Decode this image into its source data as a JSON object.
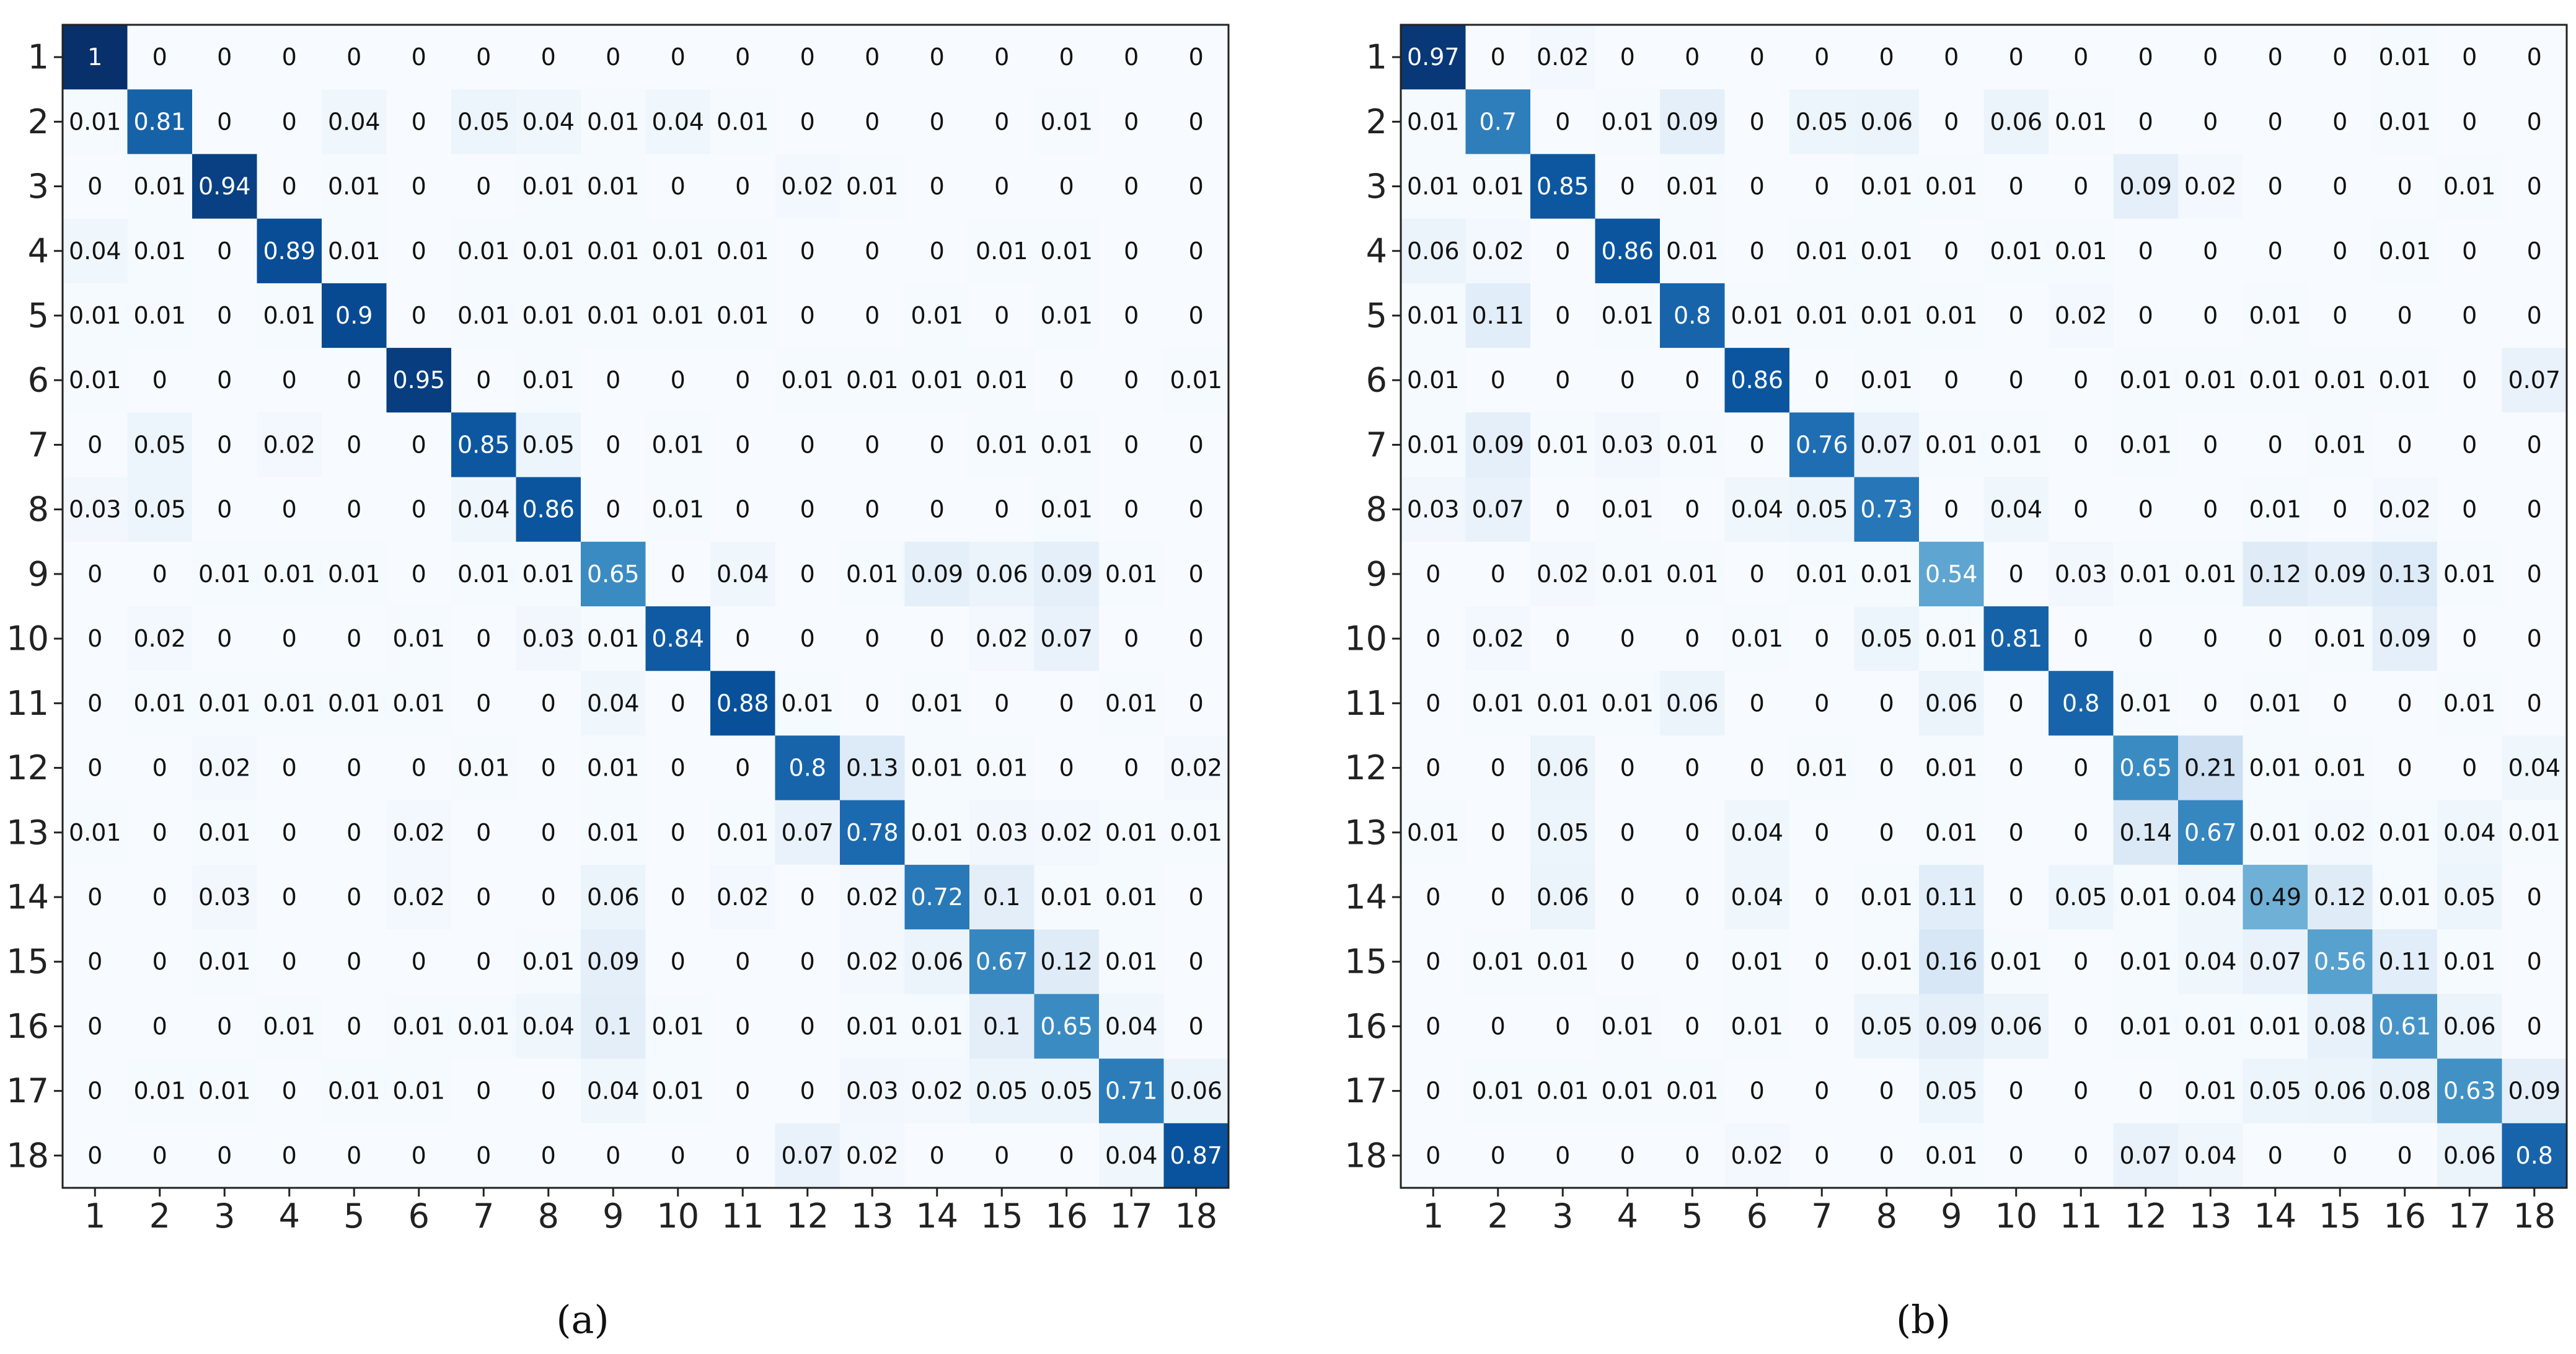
{
  "figure": {
    "chart_data": [
      {
        "type": "heatmap",
        "caption": "(a)",
        "x_categories": [
          "1",
          "2",
          "3",
          "4",
          "5",
          "6",
          "7",
          "8",
          "9",
          "10",
          "11",
          "12",
          "13",
          "14",
          "15",
          "16",
          "17",
          "18"
        ],
        "y_categories": [
          "1",
          "2",
          "3",
          "4",
          "5",
          "6",
          "7",
          "8",
          "9",
          "10",
          "11",
          "12",
          "13",
          "14",
          "15",
          "16",
          "17",
          "18"
        ],
        "colormap": "Blues",
        "value_range": [
          0,
          1
        ],
        "values": [
          [
            "1",
            "0",
            "0",
            "0",
            "0",
            "0",
            "0",
            "0",
            "0",
            "0",
            "0",
            "0",
            "0",
            "0",
            "0",
            "0",
            "0",
            "0"
          ],
          [
            "0.01",
            "0.81",
            "0",
            "0",
            "0.04",
            "0",
            "0.05",
            "0.04",
            "0.01",
            "0.04",
            "0.01",
            "0",
            "0",
            "0",
            "0",
            "0.01",
            "0",
            "0"
          ],
          [
            "0",
            "0.01",
            "0.94",
            "0",
            "0.01",
            "0",
            "0",
            "0.01",
            "0.01",
            "0",
            "0",
            "0.02",
            "0.01",
            "0",
            "0",
            "0",
            "0",
            "0"
          ],
          [
            "0.04",
            "0.01",
            "0",
            "0.89",
            "0.01",
            "0",
            "0.01",
            "0.01",
            "0.01",
            "0.01",
            "0.01",
            "0",
            "0",
            "0",
            "0.01",
            "0.01",
            "0",
            "0"
          ],
          [
            "0.01",
            "0.01",
            "0",
            "0.01",
            "0.9",
            "0",
            "0.01",
            "0.01",
            "0.01",
            "0.01",
            "0.01",
            "0",
            "0",
            "0.01",
            "0",
            "0.01",
            "0",
            "0"
          ],
          [
            "0.01",
            "0",
            "0",
            "0",
            "0",
            "0.95",
            "0",
            "0.01",
            "0",
            "0",
            "0",
            "0.01",
            "0.01",
            "0.01",
            "0.01",
            "0",
            "0",
            "0.01"
          ],
          [
            "0",
            "0.05",
            "0",
            "0.02",
            "0",
            "0",
            "0.85",
            "0.05",
            "0",
            "0.01",
            "0",
            "0",
            "0",
            "0",
            "0.01",
            "0.01",
            "0",
            "0"
          ],
          [
            "0.03",
            "0.05",
            "0",
            "0",
            "0",
            "0",
            "0.04",
            "0.86",
            "0",
            "0.01",
            "0",
            "0",
            "0",
            "0",
            "0",
            "0.01",
            "0",
            "0"
          ],
          [
            "0",
            "0",
            "0.01",
            "0.01",
            "0.01",
            "0",
            "0.01",
            "0.01",
            "0.65",
            "0",
            "0.04",
            "0",
            "0.01",
            "0.09",
            "0.06",
            "0.09",
            "0.01",
            "0"
          ],
          [
            "0",
            "0.02",
            "0",
            "0",
            "0",
            "0.01",
            "0",
            "0.03",
            "0.01",
            "0.84",
            "0",
            "0",
            "0",
            "0",
            "0.02",
            "0.07",
            "0",
            "0"
          ],
          [
            "0",
            "0.01",
            "0.01",
            "0.01",
            "0.01",
            "0.01",
            "0",
            "0",
            "0.04",
            "0",
            "0.88",
            "0.01",
            "0",
            "0.01",
            "0",
            "0",
            "0.01",
            "0"
          ],
          [
            "0",
            "0",
            "0.02",
            "0",
            "0",
            "0",
            "0.01",
            "0",
            "0.01",
            "0",
            "0",
            "0.8",
            "0.13",
            "0.01",
            "0.01",
            "0",
            "0",
            "0.02"
          ],
          [
            "0.01",
            "0",
            "0.01",
            "0",
            "0",
            "0.02",
            "0",
            "0",
            "0.01",
            "0",
            "0.01",
            "0.07",
            "0.78",
            "0.01",
            "0.03",
            "0.02",
            "0.01",
            "0.01"
          ],
          [
            "0",
            "0",
            "0.03",
            "0",
            "0",
            "0.02",
            "0",
            "0",
            "0.06",
            "0",
            "0.02",
            "0",
            "0.02",
            "0.72",
            "0.1",
            "0.01",
            "0.01",
            "0"
          ],
          [
            "0",
            "0",
            "0.01",
            "0",
            "0",
            "0",
            "0",
            "0.01",
            "0.09",
            "0",
            "0",
            "0",
            "0.02",
            "0.06",
            "0.67",
            "0.12",
            "0.01",
            "0"
          ],
          [
            "0",
            "0",
            "0",
            "0.01",
            "0",
            "0.01",
            "0.01",
            "0.04",
            "0.1",
            "0.01",
            "0",
            "0",
            "0.01",
            "0.01",
            "0.1",
            "0.65",
            "0.04",
            "0"
          ],
          [
            "0",
            "0.01",
            "0.01",
            "0",
            "0.01",
            "0.01",
            "0",
            "0",
            "0.04",
            "0.01",
            "0",
            "0",
            "0.03",
            "0.02",
            "0.05",
            "0.05",
            "0.71",
            "0.06"
          ],
          [
            "0",
            "0",
            "0",
            "0",
            "0",
            "0",
            "0",
            "0",
            "0",
            "0",
            "0",
            "0.07",
            "0.02",
            "0",
            "0",
            "0",
            "0.04",
            "0.87"
          ]
        ]
      },
      {
        "type": "heatmap",
        "caption": "(b)",
        "x_categories": [
          "1",
          "2",
          "3",
          "4",
          "5",
          "6",
          "7",
          "8",
          "9",
          "10",
          "11",
          "12",
          "13",
          "14",
          "15",
          "16",
          "17",
          "18"
        ],
        "y_categories": [
          "1",
          "2",
          "3",
          "4",
          "5",
          "6",
          "7",
          "8",
          "9",
          "10",
          "11",
          "12",
          "13",
          "14",
          "15",
          "16",
          "17",
          "18"
        ],
        "colormap": "Blues",
        "value_range": [
          0,
          1
        ],
        "values": [
          [
            "0.97",
            "0",
            "0.02",
            "0",
            "0",
            "0",
            "0",
            "0",
            "0",
            "0",
            "0",
            "0",
            "0",
            "0",
            "0",
            "0.01",
            "0",
            "0"
          ],
          [
            "0.01",
            "0.7",
            "0",
            "0.01",
            "0.09",
            "0",
            "0.05",
            "0.06",
            "0",
            "0.06",
            "0.01",
            "0",
            "0",
            "0",
            "0",
            "0.01",
            "0",
            "0"
          ],
          [
            "0.01",
            "0.01",
            "0.85",
            "0",
            "0.01",
            "0",
            "0",
            "0.01",
            "0.01",
            "0",
            "0",
            "0.09",
            "0.02",
            "0",
            "0",
            "0",
            "0.01",
            "0"
          ],
          [
            "0.06",
            "0.02",
            "0",
            "0.86",
            "0.01",
            "0",
            "0.01",
            "0.01",
            "0",
            "0.01",
            "0.01",
            "0",
            "0",
            "0",
            "0",
            "0.01",
            "0",
            "0"
          ],
          [
            "0.01",
            "0.11",
            "0",
            "0.01",
            "0.8",
            "0.01",
            "0.01",
            "0.01",
            "0.01",
            "0",
            "0.02",
            "0",
            "0",
            "0.01",
            "0",
            "0",
            "0",
            "0"
          ],
          [
            "0.01",
            "0",
            "0",
            "0",
            "0",
            "0.86",
            "0",
            "0.01",
            "0",
            "0",
            "0",
            "0.01",
            "0.01",
            "0.01",
            "0.01",
            "0.01",
            "0",
            "0.07"
          ],
          [
            "0.01",
            "0.09",
            "0.01",
            "0.03",
            "0.01",
            "0",
            "0.76",
            "0.07",
            "0.01",
            "0.01",
            "0",
            "0.01",
            "0",
            "0",
            "0.01",
            "0",
            "0",
            "0"
          ],
          [
            "0.03",
            "0.07",
            "0",
            "0.01",
            "0",
            "0.04",
            "0.05",
            "0.73",
            "0",
            "0.04",
            "0",
            "0",
            "0",
            "0.01",
            "0",
            "0.02",
            "0",
            "0"
          ],
          [
            "0",
            "0",
            "0.02",
            "0.01",
            "0.01",
            "0",
            "0.01",
            "0.01",
            "0.54",
            "0",
            "0.03",
            "0.01",
            "0.01",
            "0.12",
            "0.09",
            "0.13",
            "0.01",
            "0"
          ],
          [
            "0",
            "0.02",
            "0",
            "0",
            "0",
            "0.01",
            "0",
            "0.05",
            "0.01",
            "0.81",
            "0",
            "0",
            "0",
            "0",
            "0.01",
            "0.09",
            "0",
            "0"
          ],
          [
            "0",
            "0.01",
            "0.01",
            "0.01",
            "0.06",
            "0",
            "0",
            "0",
            "0.06",
            "0",
            "0.8",
            "0.01",
            "0",
            "0.01",
            "0",
            "0",
            "0.01",
            "0"
          ],
          [
            "0",
            "0",
            "0.06",
            "0",
            "0",
            "0",
            "0.01",
            "0",
            "0.01",
            "0",
            "0",
            "0.65",
            "0.21",
            "0.01",
            "0.01",
            "0",
            "0",
            "0.04"
          ],
          [
            "0.01",
            "0",
            "0.05",
            "0",
            "0",
            "0.04",
            "0",
            "0",
            "0.01",
            "0",
            "0",
            "0.14",
            "0.67",
            "0.01",
            "0.02",
            "0.01",
            "0.04",
            "0.01"
          ],
          [
            "0",
            "0",
            "0.06",
            "0",
            "0",
            "0.04",
            "0",
            "0.01",
            "0.11",
            "0",
            "0.05",
            "0.01",
            "0.04",
            "0.49",
            "0.12",
            "0.01",
            "0.05",
            "0"
          ],
          [
            "0",
            "0.01",
            "0.01",
            "0",
            "0",
            "0.01",
            "0",
            "0.01",
            "0.16",
            "0.01",
            "0",
            "0.01",
            "0.04",
            "0.07",
            "0.56",
            "0.11",
            "0.01",
            "0"
          ],
          [
            "0",
            "0",
            "0",
            "0.01",
            "0",
            "0.01",
            "0",
            "0.05",
            "0.09",
            "0.06",
            "0",
            "0.01",
            "0.01",
            "0.01",
            "0.08",
            "0.61",
            "0.06",
            "0"
          ],
          [
            "0",
            "0.01",
            "0.01",
            "0.01",
            "0.01",
            "0",
            "0",
            "0",
            "0.05",
            "0",
            "0",
            "0",
            "0.01",
            "0.05",
            "0.06",
            "0.08",
            "0.63",
            "0.09"
          ],
          [
            "0",
            "0",
            "0",
            "0",
            "0",
            "0.02",
            "0",
            "0",
            "0.01",
            "0",
            "0",
            "0.07",
            "0.04",
            "0",
            "0",
            "0",
            "0.06",
            "0.8"
          ]
        ]
      }
    ]
  }
}
